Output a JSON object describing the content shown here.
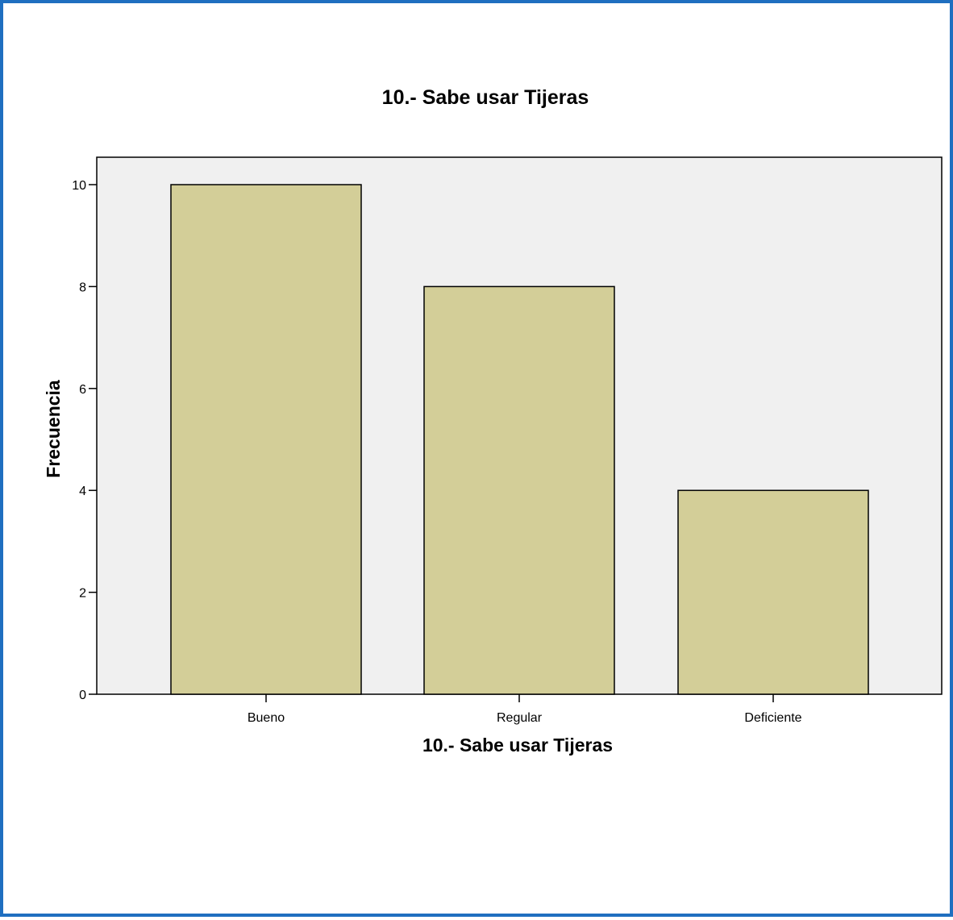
{
  "colors": {
    "frame_border": "#1f6fc0",
    "plot_background": "#f0f0f0",
    "bar_fill": "#d3ce98",
    "bar_stroke": "#000000",
    "axis": "#000000"
  },
  "chart_data": {
    "type": "bar",
    "title": "10.- Sabe usar Tijeras",
    "xlabel": "10.- Sabe usar Tijeras",
    "ylabel": "Frecuencia",
    "categories": [
      "Bueno",
      "Regular",
      "Deficiente"
    ],
    "values": [
      10,
      8,
      4
    ],
    "ylim": [
      0,
      10.5
    ],
    "yticks": [
      0,
      2,
      4,
      6,
      8,
      10
    ],
    "grid": false,
    "legend": "none"
  }
}
